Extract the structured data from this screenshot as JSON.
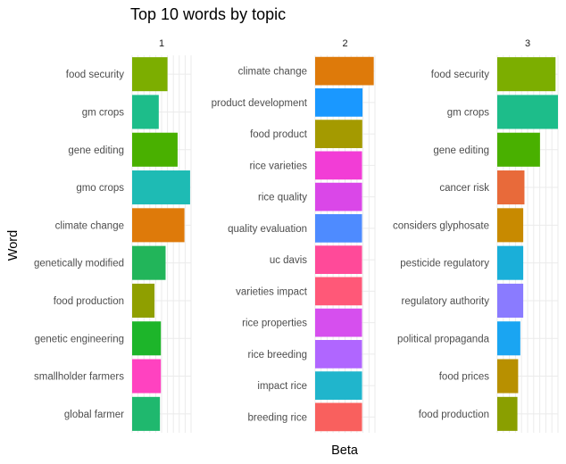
{
  "chart_data": {
    "type": "bar",
    "orientation": "horizontal",
    "title": "Top 10 words by topic",
    "xlabel": "Beta",
    "ylabel": "Word",
    "grid": true,
    "legend": "none",
    "facets": [
      {
        "name": "1",
        "xlim": [
          0,
          0.025
        ],
        "categories": [
          "food security",
          "gm crops",
          "gene editing",
          "gmo crops",
          "climate change",
          "genetically modified",
          "food production",
          "genetic engineering",
          "smallholder farmers",
          "global farmer"
        ],
        "values": [
          0.015,
          0.0113,
          0.0193,
          0.0246,
          0.0222,
          0.0142,
          0.0095,
          0.0122,
          0.0122,
          0.0118
        ],
        "colors": [
          "#7CAE00",
          "#1DBD8A",
          "#49B000",
          "#1EBBB4",
          "#DE7A0A",
          "#22B55A",
          "#8F9F00",
          "#1DB52A",
          "#FF42C0",
          "#1FB86E"
        ]
      },
      {
        "name": "2",
        "xlim": [
          0,
          0.025
        ],
        "categories": [
          "climate change",
          "product development",
          "food product",
          "rice varieties",
          "rice quality",
          "quality evaluation",
          "uc davis",
          "varieties impact",
          "rice properties",
          "rice breeding",
          "impact rice",
          "breeding rice"
        ],
        "values": [
          0.0245,
          0.0198,
          0.0197,
          0.0196,
          0.0196,
          0.0196,
          0.0196,
          0.0196,
          0.0196,
          0.0196,
          0.0196,
          0.0196
        ],
        "colors": [
          "#DE7A0A",
          "#1A98FF",
          "#A49A00",
          "#F23DD6",
          "#DA47E8",
          "#4E8BFF",
          "#FF4A99",
          "#FF5878",
          "#D64FEE",
          "#B066FF",
          "#20B5CC",
          "#F9605E"
        ]
      },
      {
        "name": "3",
        "xlim": [
          0,
          0.025
        ],
        "categories": [
          "food security",
          "gm crops",
          "gene editing",
          "cancer risk",
          "considers glyphosate",
          "pesticide regulatory",
          "regulatory authority",
          "political propaganda",
          "food prices",
          "food production"
        ],
        "values": [
          0.024,
          0.025,
          0.0176,
          0.0112,
          0.0107,
          0.0107,
          0.0107,
          0.0095,
          0.0086,
          0.0083
        ],
        "colors": [
          "#7CAE00",
          "#1DBD8A",
          "#49B000",
          "#E86A3A",
          "#C88A00",
          "#1AAFD9",
          "#8A7BFF",
          "#1AA5F2",
          "#B89000",
          "#8A9F00"
        ]
      }
    ]
  }
}
